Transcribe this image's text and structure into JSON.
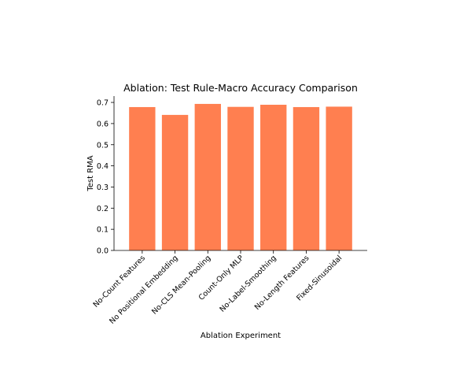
{
  "chart_data": {
    "type": "bar",
    "title": "Ablation: Test Rule-Macro Accuracy Comparison",
    "xlabel": "Ablation Experiment",
    "ylabel": "Test RMA",
    "categories": [
      "No-Count Features",
      "No Positional Embedding",
      "No-CLS Mean-Pooling",
      "Count-Only MLP",
      "No-Label-Smoothing",
      "No-Length Features",
      "Fixed-Sinusoidal"
    ],
    "values": [
      0.678,
      0.641,
      0.693,
      0.679,
      0.689,
      0.678,
      0.68
    ],
    "ylim": [
      0,
      0.73
    ],
    "yticks": [
      "0.0",
      "0.1",
      "0.2",
      "0.3",
      "0.4",
      "0.5",
      "0.6",
      "0.7"
    ],
    "bar_color": "#ff7f50",
    "grid": false,
    "legend": "none"
  }
}
